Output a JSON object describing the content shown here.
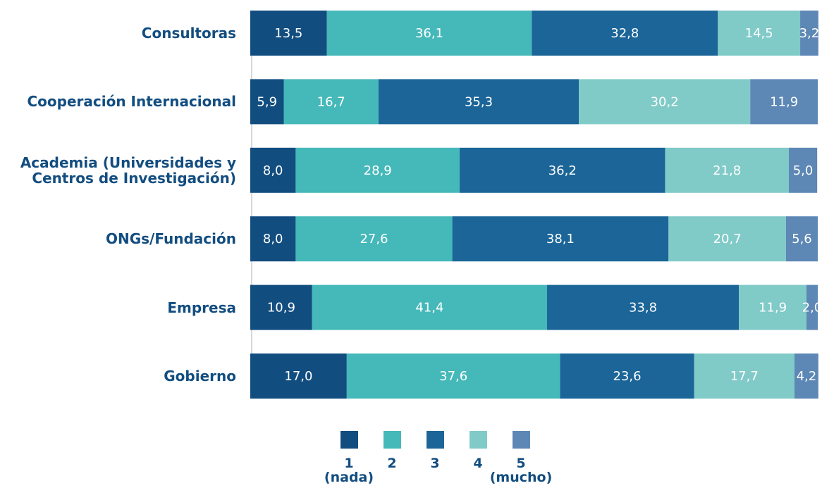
{
  "chart_data": {
    "type": "stacked_barh",
    "categories": [
      "Consultoras",
      "Cooperación Internacional",
      "Academia (Universidades y\nCentros de Investigación)",
      "ONGs/Fundación",
      "Empresa",
      "Gobierno"
    ],
    "xlim": [
      0,
      100
    ],
    "series": [
      {
        "name": "1\n(nada)",
        "color": "#124d80",
        "values": [
          13.5,
          5.9,
          8.0,
          8.0,
          10.9,
          17.0
        ],
        "value_labels": [
          "13,5",
          "5,9",
          "8,0",
          "8,0",
          "10,9",
          "17,0"
        ]
      },
      {
        "name": "2",
        "color": "#45b8b9",
        "values": [
          36.1,
          16.7,
          28.9,
          27.6,
          41.4,
          37.6
        ],
        "value_labels": [
          "36,1",
          "16,7",
          "28,9",
          "27,6",
          "41,4",
          "37,6"
        ]
      },
      {
        "name": "3",
        "color": "#1b6598",
        "values": [
          32.8,
          35.3,
          36.2,
          38.1,
          33.8,
          23.6
        ],
        "value_labels": [
          "32,8",
          "35,3",
          "36,2",
          "38,1",
          "33,8",
          "23,6"
        ]
      },
      {
        "name": "4",
        "color": "#80cac8",
        "values": [
          14.5,
          30.2,
          21.8,
          20.7,
          11.9,
          17.7
        ],
        "value_labels": [
          "14,5",
          "30,2",
          "21,8",
          "20,7",
          "11,9",
          "17,7"
        ]
      },
      {
        "name": "5\n(mucho)",
        "color": "#5d87b5",
        "values": [
          3.2,
          11.9,
          5.0,
          5.6,
          2.0,
          4.2
        ],
        "value_labels": [
          "3,2",
          "11,9",
          "5,0",
          "5,6",
          "2,0",
          "4,2"
        ]
      }
    ]
  }
}
